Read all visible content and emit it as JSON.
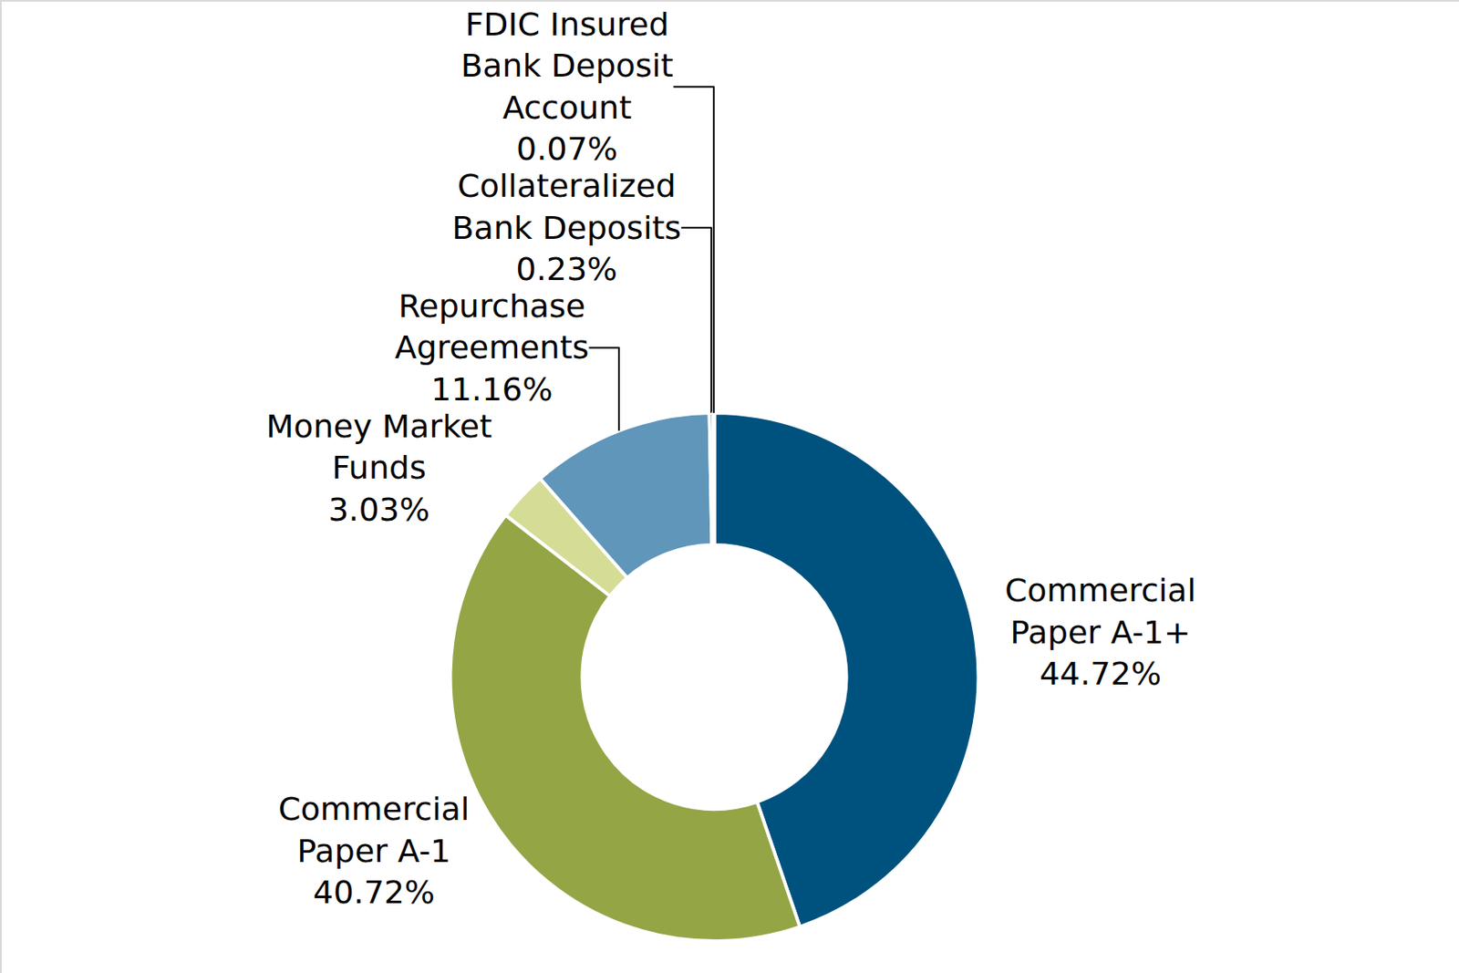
{
  "chart_data": {
    "type": "pie",
    "categories": [
      "Commercial Paper A-1+",
      "Commercial Paper A-1",
      "Money Market Funds",
      "Repurchase Agreements",
      "Collateralized Bank Deposits",
      "FDIC Insured Bank Deposit Account"
    ],
    "values": [
      44.72,
      40.72,
      3.03,
      11.16,
      0.23,
      0.07
    ],
    "value_labels": [
      "44.72%",
      "40.72%",
      "3.03%",
      "11.16%",
      "0.23%",
      "0.07%"
    ],
    "colors": [
      "#00527e",
      "#94a545",
      "#d5dc95",
      "#6096ba",
      "#1f4e79",
      "#8fb3d0"
    ],
    "data_labels": true
  }
}
